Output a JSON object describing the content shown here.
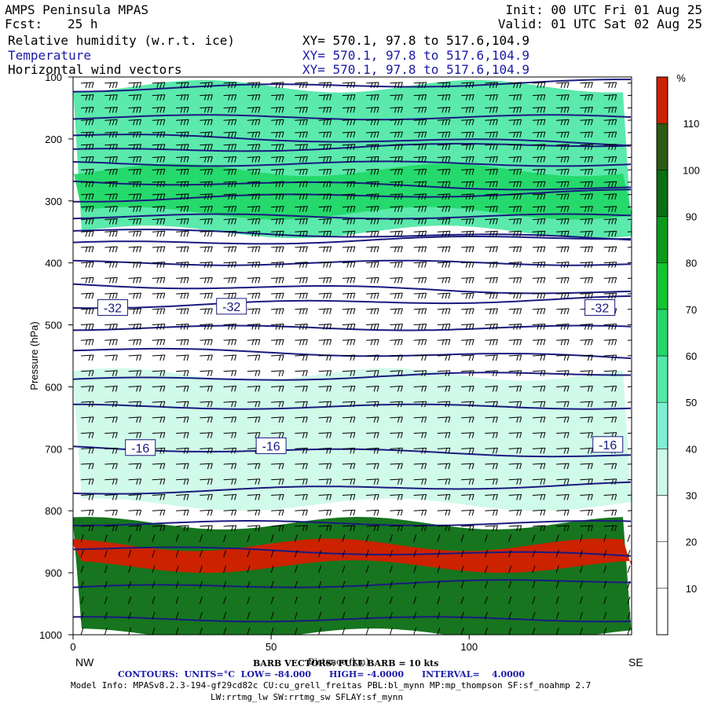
{
  "header": {
    "model": "AMPS Peninsula MPAS",
    "init": "Init: 00 UTC Fri 01 Aug 25",
    "fcst_label": "Fcst:",
    "fcst_value": "25 h",
    "valid": "Valid: 01 UTC Sat 02 Aug 25",
    "field1": "Relative humidity (w.r.t. ice)",
    "field2": "Temperature",
    "field3": "Horizontal wind vectors",
    "xy1": "XY= 570.1, 97.8 to 517.6,104.9",
    "xy2": "XY= 570.1, 97.8 to 517.6,104.9",
    "xy3": "XY= 570.1, 97.8 to 517.6,104.9"
  },
  "footer": {
    "barb": "BARB VECTORS: FULL BARB = 10 kts",
    "xlabel_overlap": "Distance (km)",
    "contours": "CONTOURS:  UNITS=°C  LOW= -84.000      HIGH= -4.0000      INTERVAL=    4.0000",
    "model_info": "Model Info: MPASv8.2.3-194-gf29cd82c CU:cu_grell_freitas PBL:bl_mynn MP:mp_thompson SF:sf_noahmp 2.7",
    "model_info2": "LW:rrtmg_lw SW:rrtmg_sw SFLAY:sf_mynn",
    "nw": "NW",
    "se": "SE"
  },
  "colors": {
    "temp_contour": "#1a1a80",
    "rh_bands": [
      "#ffffff",
      "#ffffff",
      "#ffffff",
      "#cdfae8",
      "#7ef0d2",
      "#52e8a8",
      "#24d868",
      "#12c430",
      "#0a9a1a",
      "#0a6e12",
      "#2c5a10",
      "#cc2200"
    ]
  },
  "chart_data": {
    "type": "cross-section",
    "ylabel": "Pressure (hPa)",
    "xlabel": "Distance (km)",
    "x_ticks": [
      0,
      50,
      100
    ],
    "x_range": [
      0,
      141
    ],
    "y_ticks": [
      100,
      200,
      300,
      400,
      500,
      600,
      700,
      800,
      900,
      1000
    ],
    "y_range": [
      100,
      1000
    ],
    "y_inverted": true,
    "colorbar": {
      "unit": "%",
      "ticks": [
        10,
        20,
        30,
        40,
        50,
        60,
        70,
        80,
        90,
        100,
        110
      ]
    },
    "temperature_contour_labels": [
      {
        "value": "-32",
        "x": 10,
        "p": 472
      },
      {
        "value": "-32",
        "x": 40,
        "p": 470
      },
      {
        "value": "-32",
        "x": 133,
        "p": 472
      },
      {
        "value": "-16",
        "x": 17,
        "p": 698
      },
      {
        "value": "-16",
        "x": 50,
        "p": 695
      },
      {
        "value": "-16",
        "x": 135,
        "p": 693
      }
    ],
    "temperature_isotherms_p": [
      120,
      165,
      195,
      220,
      240,
      268,
      298,
      325,
      348,
      370,
      400,
      435,
      470,
      505,
      540,
      590,
      632,
      698,
      770,
      820,
      860,
      925,
      975
    ],
    "rh_regions": [
      {
        "label": "upper moist band",
        "p_top": 115,
        "p_bottom": 350,
        "rh": 55
      },
      {
        "label": "upper core",
        "p_top": 250,
        "p_bottom": 320,
        "rh": 65
      },
      {
        "label": "mid dry band",
        "p_top": 380,
        "p_bottom": 640,
        "rh": 15
      },
      {
        "label": "mid moist",
        "p_top": 580,
        "p_bottom": 790,
        "rh": 35
      },
      {
        "label": "low saturated",
        "p_top": 820,
        "p_bottom": 1000,
        "rh": 90
      },
      {
        "label": "supersaturated layer",
        "p_top": 855,
        "p_bottom": 890,
        "rh": 112
      }
    ],
    "barb_levels_p": [
      110,
      130,
      150,
      170,
      190,
      210,
      230,
      250,
      270,
      290,
      310,
      330,
      350,
      375,
      400,
      425,
      450,
      475,
      500,
      525,
      550,
      575,
      600,
      625,
      650,
      675,
      700,
      725,
      750,
      775,
      800,
      825,
      850,
      875,
      900,
      925,
      950,
      975,
      1000
    ],
    "barb_x": [
      2,
      8,
      14,
      20,
      26,
      32,
      38,
      44,
      50,
      56,
      62,
      68,
      74,
      80,
      86,
      92,
      98,
      104,
      110,
      116,
      122,
      128,
      134,
      140
    ]
  }
}
